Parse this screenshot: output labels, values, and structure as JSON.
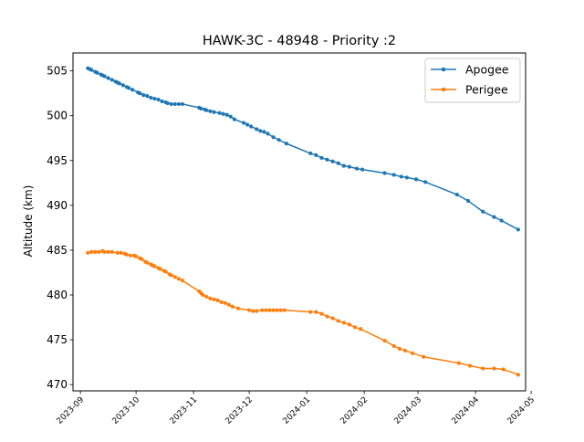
{
  "colors": {
    "apogee": "#1f77b4",
    "perigee": "#ff7f0e",
    "axis": "#000000",
    "background": "#ffffff"
  },
  "chart_data": {
    "type": "line",
    "title": "HAWK-3C - 48948 - Priority :2",
    "xlabel": "",
    "ylabel": "Altitude (km)",
    "xlim": [
      "2023-08-28",
      "2024-04-28"
    ],
    "ylim": [
      469.3,
      507.0
    ],
    "x_ticks": [
      {
        "date": "2023-09-01",
        "label": "2023-09"
      },
      {
        "date": "2023-10-01",
        "label": "2023-10"
      },
      {
        "date": "2023-11-01",
        "label": "2023-11"
      },
      {
        "date": "2023-12-01",
        "label": "2023-12"
      },
      {
        "date": "2024-01-01",
        "label": "2024-01"
      },
      {
        "date": "2024-02-01",
        "label": "2024-02"
      },
      {
        "date": "2024-03-01",
        "label": "2024-03"
      },
      {
        "date": "2024-04-01",
        "label": "2024-04"
      },
      {
        "date": "2024-05-01",
        "label": "2024-05"
      }
    ],
    "y_ticks": [
      470,
      475,
      480,
      485,
      490,
      495,
      500,
      505
    ],
    "grid": false,
    "legend_position": "top-right",
    "series": [
      {
        "name": "Apogee",
        "color": "#1f77b4",
        "points": [
          [
            "2023-09-05",
            505.3
          ],
          [
            "2023-09-06",
            505.2
          ],
          [
            "2023-09-07",
            505.1
          ],
          [
            "2023-09-09",
            504.9
          ],
          [
            "2023-09-10",
            504.8
          ],
          [
            "2023-09-12",
            504.6
          ],
          [
            "2023-09-13",
            504.5
          ],
          [
            "2023-09-14",
            504.4
          ],
          [
            "2023-09-16",
            504.2
          ],
          [
            "2023-09-18",
            504.0
          ],
          [
            "2023-09-20",
            503.8
          ],
          [
            "2023-09-21",
            503.7
          ],
          [
            "2023-09-22",
            503.6
          ],
          [
            "2023-09-24",
            503.4
          ],
          [
            "2023-09-26",
            503.2
          ],
          [
            "2023-09-27",
            503.1
          ],
          [
            "2023-09-29",
            502.9
          ],
          [
            "2023-10-02",
            502.6
          ],
          [
            "2023-10-03",
            502.5
          ],
          [
            "2023-10-05",
            502.3
          ],
          [
            "2023-10-07",
            502.2
          ],
          [
            "2023-10-09",
            502.0
          ],
          [
            "2023-10-11",
            501.9
          ],
          [
            "2023-10-13",
            501.8
          ],
          [
            "2023-10-15",
            501.6
          ],
          [
            "2023-10-17",
            501.5
          ],
          [
            "2023-10-18",
            501.4
          ],
          [
            "2023-10-20",
            501.3
          ],
          [
            "2023-10-22",
            501.3
          ],
          [
            "2023-10-24",
            501.3
          ],
          [
            "2023-10-26",
            501.3
          ],
          [
            "2023-11-04",
            500.9
          ],
          [
            "2023-11-05",
            500.8
          ],
          [
            "2023-11-07",
            500.7
          ],
          [
            "2023-11-08",
            500.6
          ],
          [
            "2023-11-10",
            500.5
          ],
          [
            "2023-11-12",
            500.4
          ],
          [
            "2023-11-15",
            500.3
          ],
          [
            "2023-11-17",
            500.2
          ],
          [
            "2023-11-19",
            500.1
          ],
          [
            "2023-11-21",
            499.9
          ],
          [
            "2023-11-23",
            499.6
          ],
          [
            "2023-11-28",
            499.2
          ],
          [
            "2023-11-30",
            499.0
          ],
          [
            "2023-12-02",
            498.8
          ],
          [
            "2023-12-05",
            498.5
          ],
          [
            "2023-12-07",
            498.3
          ],
          [
            "2023-12-09",
            498.2
          ],
          [
            "2023-12-11",
            498.0
          ],
          [
            "2023-12-14",
            497.6
          ],
          [
            "2023-12-17",
            497.3
          ],
          [
            "2023-12-21",
            496.9
          ],
          [
            "2024-01-03",
            495.8
          ],
          [
            "2024-01-06",
            495.6
          ],
          [
            "2024-01-09",
            495.3
          ],
          [
            "2024-01-12",
            495.1
          ],
          [
            "2024-01-15",
            494.9
          ],
          [
            "2024-01-18",
            494.7
          ],
          [
            "2024-01-21",
            494.4
          ],
          [
            "2024-01-24",
            494.3
          ],
          [
            "2024-01-28",
            494.1
          ],
          [
            "2024-01-31",
            494.0
          ],
          [
            "2024-02-12",
            493.6
          ],
          [
            "2024-02-17",
            493.4
          ],
          [
            "2024-02-21",
            493.2
          ],
          [
            "2024-02-24",
            493.1
          ],
          [
            "2024-02-29",
            492.9
          ],
          [
            "2024-03-05",
            492.6
          ],
          [
            "2024-03-22",
            491.2
          ],
          [
            "2024-03-28",
            490.5
          ],
          [
            "2024-04-05",
            489.3
          ],
          [
            "2024-04-11",
            488.7
          ],
          [
            "2024-04-15",
            488.3
          ],
          [
            "2024-04-24",
            487.3
          ]
        ]
      },
      {
        "name": "Perigee",
        "color": "#ff7f0e",
        "points": [
          [
            "2023-09-05",
            484.7
          ],
          [
            "2023-09-07",
            484.8
          ],
          [
            "2023-09-09",
            484.8
          ],
          [
            "2023-09-11",
            484.8
          ],
          [
            "2023-09-13",
            484.9
          ],
          [
            "2023-09-14",
            484.8
          ],
          [
            "2023-09-16",
            484.8
          ],
          [
            "2023-09-18",
            484.8
          ],
          [
            "2023-09-21",
            484.7
          ],
          [
            "2023-09-23",
            484.7
          ],
          [
            "2023-09-25",
            484.6
          ],
          [
            "2023-09-26",
            484.5
          ],
          [
            "2023-09-28",
            484.4
          ],
          [
            "2023-09-30",
            484.4
          ],
          [
            "2023-10-01",
            484.3
          ],
          [
            "2023-10-03",
            484.1
          ],
          [
            "2023-10-04",
            484.0
          ],
          [
            "2023-10-06",
            483.7
          ],
          [
            "2023-10-07",
            483.6
          ],
          [
            "2023-10-09",
            483.4
          ],
          [
            "2023-10-10",
            483.3
          ],
          [
            "2023-10-11",
            483.2
          ],
          [
            "2023-10-13",
            483.0
          ],
          [
            "2023-10-14",
            482.9
          ],
          [
            "2023-10-16",
            482.7
          ],
          [
            "2023-10-17",
            482.6
          ],
          [
            "2023-10-19",
            482.3
          ],
          [
            "2023-10-20",
            482.2
          ],
          [
            "2023-10-22",
            482.0
          ],
          [
            "2023-10-24",
            481.8
          ],
          [
            "2023-10-26",
            481.6
          ],
          [
            "2023-11-04",
            480.4
          ],
          [
            "2023-11-05",
            480.2
          ],
          [
            "2023-11-06",
            480.0
          ],
          [
            "2023-11-08",
            479.8
          ],
          [
            "2023-11-10",
            479.6
          ],
          [
            "2023-11-12",
            479.5
          ],
          [
            "2023-11-14",
            479.4
          ],
          [
            "2023-11-16",
            479.2
          ],
          [
            "2023-11-18",
            479.1
          ],
          [
            "2023-11-20",
            478.9
          ],
          [
            "2023-11-22",
            478.7
          ],
          [
            "2023-11-25",
            478.5
          ],
          [
            "2023-12-01",
            478.3
          ],
          [
            "2023-12-03",
            478.2
          ],
          [
            "2023-12-05",
            478.2
          ],
          [
            "2023-12-08",
            478.3
          ],
          [
            "2023-12-10",
            478.3
          ],
          [
            "2023-12-12",
            478.3
          ],
          [
            "2023-12-14",
            478.3
          ],
          [
            "2023-12-16",
            478.3
          ],
          [
            "2023-12-18",
            478.3
          ],
          [
            "2023-12-20",
            478.3
          ],
          [
            "2024-01-03",
            478.1
          ],
          [
            "2024-01-06",
            478.1
          ],
          [
            "2024-01-09",
            477.9
          ],
          [
            "2024-01-12",
            477.6
          ],
          [
            "2024-01-15",
            477.4
          ],
          [
            "2024-01-18",
            477.1
          ],
          [
            "2024-01-21",
            476.9
          ],
          [
            "2024-01-24",
            476.7
          ],
          [
            "2024-01-27",
            476.4
          ],
          [
            "2024-01-30",
            476.2
          ],
          [
            "2024-02-12",
            474.9
          ],
          [
            "2024-02-17",
            474.3
          ],
          [
            "2024-02-20",
            474.0
          ],
          [
            "2024-02-23",
            473.8
          ],
          [
            "2024-02-27",
            473.5
          ],
          [
            "2024-03-04",
            473.1
          ],
          [
            "2024-03-23",
            472.4
          ],
          [
            "2024-03-29",
            472.1
          ],
          [
            "2024-04-05",
            471.8
          ],
          [
            "2024-04-11",
            471.8
          ],
          [
            "2024-04-16",
            471.7
          ],
          [
            "2024-04-24",
            471.1
          ]
        ]
      }
    ]
  }
}
